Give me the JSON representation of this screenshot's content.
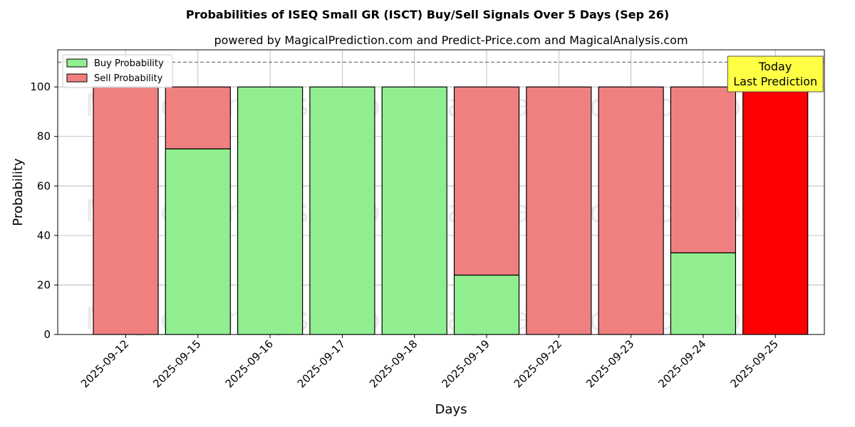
{
  "chart_data": {
    "type": "bar",
    "stacked": true,
    "title": "Probabilities of ISEQ Small GR (ISCT) Buy/Sell Signals Over 5 Days (Sep 26)",
    "subtitle": "powered by MagicalPrediction.com and Predict-Price.com and MagicalAnalysis.com",
    "xlabel": "Days",
    "ylabel": "Probability",
    "ylim": [
      0,
      115
    ],
    "yticks": [
      "0",
      "20",
      "40",
      "60",
      "80",
      "100"
    ],
    "grid": true,
    "reference_line": 110,
    "legend_position": "top-left",
    "categories": [
      "2025-09-12",
      "2025-09-15",
      "2025-09-16",
      "2025-09-17",
      "2025-09-18",
      "2025-09-19",
      "2025-09-22",
      "2025-09-23",
      "2025-09-24",
      "2025-09-25"
    ],
    "series": [
      {
        "name": "Buy Probability",
        "color": "#90ee90",
        "values": [
          0,
          75,
          100,
          100,
          100,
          24,
          0,
          0,
          33,
          0
        ]
      },
      {
        "name": "Sell Probability",
        "color": "#f08080",
        "values": [
          100,
          25,
          0,
          0,
          0,
          76,
          100,
          100,
          67,
          100
        ]
      }
    ],
    "highlight": {
      "index": 9,
      "color": "#ff0000"
    },
    "annotation": {
      "lines": [
        "Today",
        "Last Prediction"
      ],
      "color": "#ffff44"
    },
    "watermarks": [
      "MagicalAnalysis.com",
      "MagicalPrediction.com"
    ]
  }
}
